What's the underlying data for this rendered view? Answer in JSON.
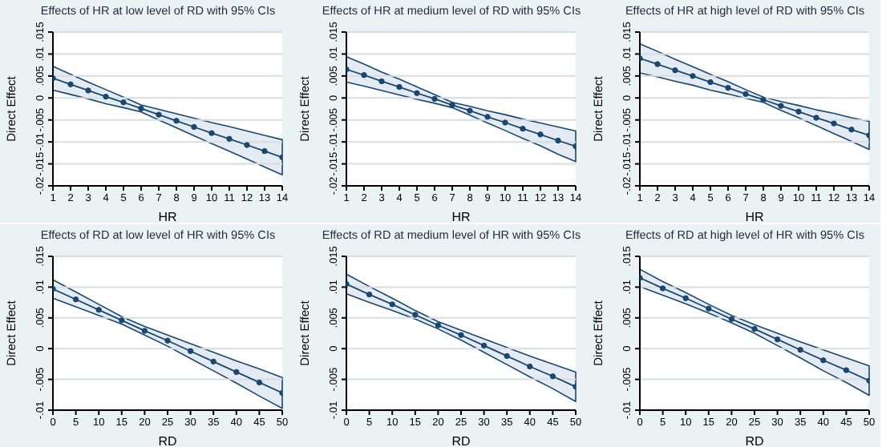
{
  "chart_data": [
    {
      "type": "line",
      "title": "Effects of HR at low level of RD with 95% CIs",
      "xlabel": "HR",
      "ylabel": "Direct Effect",
      "x": [
        1,
        2,
        3,
        4,
        5,
        6,
        7,
        8,
        9,
        10,
        11,
        12,
        13,
        14
      ],
      "xlim": [
        1,
        14
      ],
      "xticks": [
        1,
        2,
        3,
        4,
        5,
        6,
        7,
        8,
        9,
        10,
        11,
        12,
        13,
        14
      ],
      "ylim": [
        -0.02,
        0.015
      ],
      "yticks": [
        {
          "value": -0.02,
          "label": "-.02"
        },
        {
          "value": -0.015,
          "label": "-.015"
        },
        {
          "value": -0.01,
          "label": "-.01"
        },
        {
          "value": -0.005,
          "label": "-.005"
        },
        {
          "value": 0,
          "label": "0"
        },
        {
          "value": 0.005,
          "label": ".005"
        },
        {
          "value": 0.01,
          "label": ".01"
        },
        {
          "value": 0.015,
          "label": ".015"
        }
      ],
      "grid": "y",
      "marker": "circle",
      "series": [
        {
          "color": "#1a476f",
          "values": [
            0.0045,
            0.0031,
            0.0017,
            0.0003,
            -0.001,
            -0.0024,
            -0.0038,
            -0.0052,
            -0.0066,
            -0.008,
            -0.0093,
            -0.0107,
            -0.0121,
            -0.0135
          ],
          "upper": [
            0.0072,
            0.0054,
            0.0036,
            0.0019,
            0.0002,
            -0.0016,
            -0.0026,
            -0.0036,
            -0.0046,
            -0.0056,
            -0.0065,
            -0.0075,
            -0.0085,
            -0.0095
          ],
          "lower": [
            0.0018,
            0.0008,
            -0.0002,
            -0.0013,
            -0.0022,
            -0.0032,
            -0.005,
            -0.0068,
            -0.0086,
            -0.0104,
            -0.0121,
            -0.0139,
            -0.0157,
            -0.0175
          ]
        }
      ]
    },
    {
      "type": "line",
      "title": "Effects of HR at medium level of RD with 95% CIs",
      "xlabel": "HR",
      "ylabel": "Direct Effect",
      "x": [
        1,
        2,
        3,
        4,
        5,
        6,
        7,
        8,
        9,
        10,
        11,
        12,
        13,
        14
      ],
      "xlim": [
        1,
        14
      ],
      "xticks": [
        1,
        2,
        3,
        4,
        5,
        6,
        7,
        8,
        9,
        10,
        11,
        12,
        13,
        14
      ],
      "ylim": [
        -0.02,
        0.015
      ],
      "yticks": [
        {
          "value": -0.02,
          "label": "-.02"
        },
        {
          "value": -0.015,
          "label": "-.015"
        },
        {
          "value": -0.01,
          "label": "-.01"
        },
        {
          "value": -0.005,
          "label": "-.005"
        },
        {
          "value": 0,
          "label": "0"
        },
        {
          "value": 0.005,
          "label": ".005"
        },
        {
          "value": 0.01,
          "label": ".01"
        },
        {
          "value": 0.015,
          "label": ".015"
        }
      ],
      "grid": "y",
      "marker": "circle",
      "series": [
        {
          "color": "#1a476f",
          "values": [
            0.0065,
            0.0052,
            0.0038,
            0.0025,
            0.0011,
            -0.0002,
            -0.0016,
            -0.0029,
            -0.0043,
            -0.0056,
            -0.007,
            -0.0083,
            -0.0097,
            -0.011
          ],
          "upper": [
            0.0094,
            0.0077,
            0.0059,
            0.0043,
            0.0025,
            0.0008,
            -0.001,
            -0.0019,
            -0.0029,
            -0.0038,
            -0.0048,
            -0.0057,
            -0.0066,
            -0.0075
          ],
          "lower": [
            0.0036,
            0.0027,
            0.0017,
            0.0007,
            -0.0003,
            -0.0012,
            -0.0022,
            -0.0039,
            -0.0057,
            -0.0074,
            -0.0092,
            -0.0109,
            -0.0128,
            -0.0145
          ]
        }
      ]
    },
    {
      "type": "line",
      "title": "Effects of HR at high level of RD with 95% CIs",
      "xlabel": "HR",
      "ylabel": "Direct Effect",
      "x": [
        1,
        2,
        3,
        4,
        5,
        6,
        7,
        8,
        9,
        10,
        11,
        12,
        13,
        14
      ],
      "xlim": [
        1,
        14
      ],
      "xticks": [
        1,
        2,
        3,
        4,
        5,
        6,
        7,
        8,
        9,
        10,
        11,
        12,
        13,
        14
      ],
      "ylim": [
        -0.02,
        0.015
      ],
      "yticks": [
        {
          "value": -0.02,
          "label": "-.02"
        },
        {
          "value": -0.015,
          "label": "-.015"
        },
        {
          "value": -0.01,
          "label": "-.01"
        },
        {
          "value": -0.005,
          "label": "-.005"
        },
        {
          "value": 0,
          "label": "0"
        },
        {
          "value": 0.005,
          "label": ".005"
        },
        {
          "value": 0.01,
          "label": ".01"
        },
        {
          "value": 0.015,
          "label": ".015"
        }
      ],
      "grid": "y",
      "marker": "circle",
      "series": [
        {
          "color": "#1a476f",
          "values": [
            0.009,
            0.0077,
            0.0063,
            0.005,
            0.0036,
            0.0023,
            0.0009,
            -0.0004,
            -0.0018,
            -0.0031,
            -0.0045,
            -0.0058,
            -0.0072,
            -0.0085
          ],
          "upper": [
            0.0123,
            0.0106,
            0.0088,
            0.0071,
            0.0054,
            0.0037,
            0.0019,
            0.0002,
            -0.0008,
            -0.0017,
            -0.0027,
            -0.0035,
            -0.0045,
            -0.0053
          ],
          "lower": [
            0.0057,
            0.0048,
            0.0038,
            0.0029,
            0.0018,
            0.0009,
            -0.0001,
            -0.001,
            -0.0028,
            -0.0045,
            -0.0063,
            -0.0081,
            -0.0099,
            -0.0117
          ]
        }
      ]
    },
    {
      "type": "line",
      "title": "Effects of RD at low level of HR with 95% CIs",
      "xlabel": "RD",
      "ylabel": "Direct Effect",
      "x": [
        0,
        5,
        10,
        15,
        20,
        25,
        30,
        35,
        40,
        45,
        50
      ],
      "xlim": [
        0,
        50
      ],
      "xticks": [
        0,
        5,
        10,
        15,
        20,
        25,
        30,
        35,
        40,
        45,
        50
      ],
      "ylim": [
        -0.01,
        0.015
      ],
      "yticks": [
        {
          "value": -0.01,
          "label": "-.01"
        },
        {
          "value": -0.005,
          "label": "-.005"
        },
        {
          "value": 0,
          "label": "0"
        },
        {
          "value": 0.005,
          "label": ".005"
        },
        {
          "value": 0.01,
          "label": ".01"
        },
        {
          "value": 0.015,
          "label": ".015"
        }
      ],
      "grid": "y",
      "marker": "circle",
      "series": [
        {
          "color": "#1a476f",
          "values": [
            0.0097,
            0.008,
            0.0063,
            0.0046,
            0.0029,
            0.0013,
            -0.0004,
            -0.0021,
            -0.0038,
            -0.0055,
            -0.0072
          ],
          "upper": [
            0.0112,
            0.0092,
            0.0072,
            0.0052,
            0.0036,
            0.0022,
            0.0008,
            -0.0006,
            -0.002,
            -0.0033,
            -0.0047
          ],
          "lower": [
            0.0082,
            0.0068,
            0.0054,
            0.004,
            0.0022,
            0.0004,
            -0.0016,
            -0.0036,
            -0.0056,
            -0.0077,
            -0.0097
          ]
        }
      ]
    },
    {
      "type": "line",
      "title": "Effects of RD at medium level of HR with 95% CIs",
      "xlabel": "RD",
      "ylabel": "Direct Effect",
      "x": [
        0,
        5,
        10,
        15,
        20,
        25,
        30,
        35,
        40,
        45,
        50
      ],
      "xlim": [
        0,
        50
      ],
      "xticks": [
        0,
        5,
        10,
        15,
        20,
        25,
        30,
        35,
        40,
        45,
        50
      ],
      "ylim": [
        -0.01,
        0.015
      ],
      "yticks": [
        {
          "value": -0.01,
          "label": "-.01"
        },
        {
          "value": -0.005,
          "label": "-.005"
        },
        {
          "value": 0,
          "label": "0"
        },
        {
          "value": 0.005,
          "label": ".005"
        },
        {
          "value": 0.01,
          "label": ".01"
        },
        {
          "value": 0.015,
          "label": ".015"
        }
      ],
      "grid": "y",
      "marker": "circle",
      "series": [
        {
          "color": "#1a476f",
          "values": [
            0.0105,
            0.0088,
            0.0072,
            0.0055,
            0.0038,
            0.0022,
            0.0005,
            -0.0012,
            -0.0029,
            -0.0045,
            -0.0062
          ],
          "upper": [
            0.0121,
            0.0101,
            0.0082,
            0.0062,
            0.0044,
            0.003,
            0.0016,
            0.0002,
            -0.0012,
            -0.0025,
            -0.0038
          ],
          "lower": [
            0.0089,
            0.0075,
            0.0062,
            0.0048,
            0.0032,
            0.0014,
            -0.0006,
            -0.0026,
            -0.0046,
            -0.0065,
            -0.0086
          ]
        }
      ]
    },
    {
      "type": "line",
      "title": "Effects of RD at high level of HR with 95% CIs",
      "xlabel": "RD",
      "ylabel": "Direct Effect",
      "x": [
        0,
        5,
        10,
        15,
        20,
        25,
        30,
        35,
        40,
        45,
        50
      ],
      "xlim": [
        0,
        50
      ],
      "xticks": [
        0,
        5,
        10,
        15,
        20,
        25,
        30,
        35,
        40,
        45,
        50
      ],
      "ylim": [
        -0.01,
        0.015
      ],
      "yticks": [
        {
          "value": -0.01,
          "label": "-.01"
        },
        {
          "value": -0.005,
          "label": "-.005"
        },
        {
          "value": 0,
          "label": "0"
        },
        {
          "value": 0.005,
          "label": ".005"
        },
        {
          "value": 0.01,
          "label": ".01"
        },
        {
          "value": 0.015,
          "label": ".015"
        }
      ],
      "grid": "y",
      "marker": "circle",
      "series": [
        {
          "color": "#1a476f",
          "values": [
            0.0115,
            0.0098,
            0.0082,
            0.0065,
            0.0048,
            0.0032,
            0.0015,
            -0.0002,
            -0.0019,
            -0.0035,
            -0.0052
          ],
          "upper": [
            0.0129,
            0.0109,
            0.0091,
            0.0072,
            0.0054,
            0.0039,
            0.0025,
            0.0011,
            -0.0002,
            -0.0015,
            -0.0028
          ],
          "lower": [
            0.0101,
            0.0087,
            0.0073,
            0.0058,
            0.0042,
            0.0025,
            0.0005,
            -0.0015,
            -0.0036,
            -0.0055,
            -0.0076
          ]
        }
      ]
    }
  ]
}
